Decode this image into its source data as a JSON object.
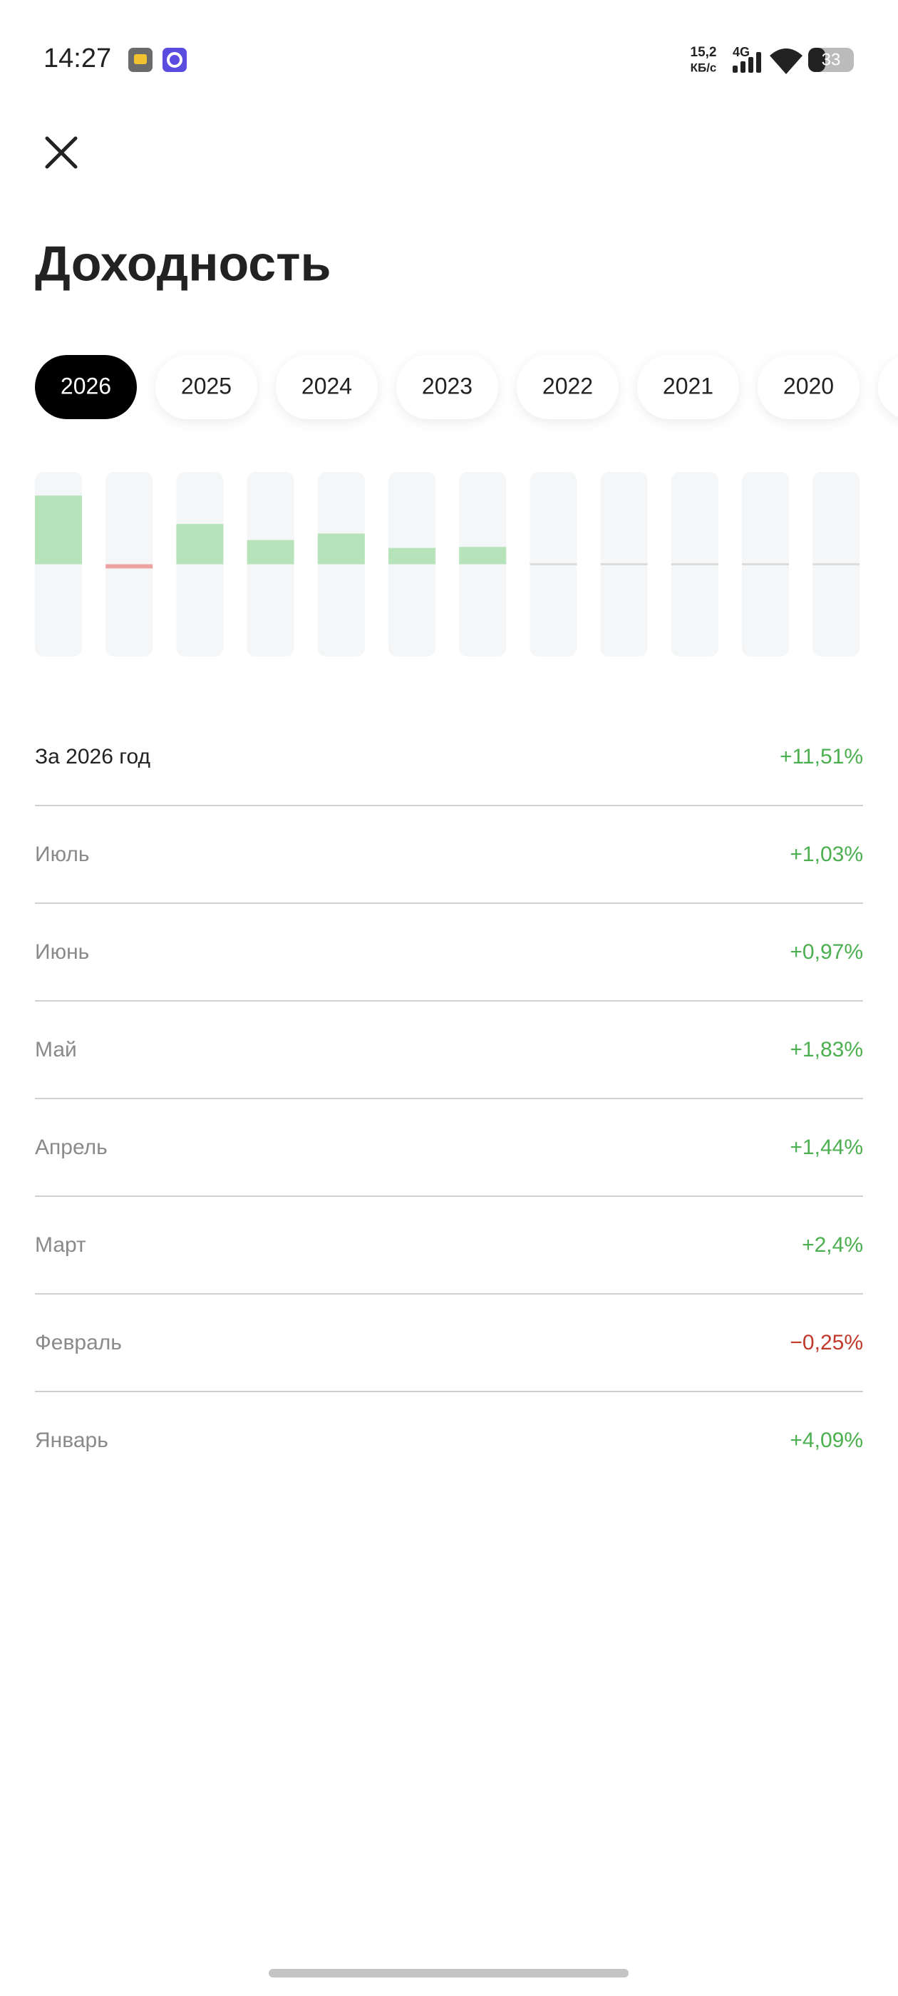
{
  "status_bar": {
    "time": "14:27",
    "speed": "15,2",
    "speed_unit": "КБ/с",
    "network": "4G",
    "battery": "33"
  },
  "header": {
    "title": "Доходность"
  },
  "tabs": {
    "items": [
      "2026",
      "2025",
      "2024",
      "2023",
      "2022",
      "2021",
      "2020"
    ],
    "selected": 0
  },
  "chart_data": {
    "type": "bar",
    "categories": [
      "Январь",
      "Февраль",
      "Март",
      "Апрель",
      "Май",
      "Июнь",
      "Июль",
      null,
      null,
      null,
      null,
      null
    ],
    "values": [
      4.09,
      -0.25,
      2.4,
      1.44,
      1.83,
      0.97,
      1.03,
      null,
      null,
      null,
      null,
      null
    ],
    "value_labels": [
      "+4,09%",
      "−0,25%",
      "+2,4%",
      "+1,44%",
      "+1,83%",
      "+0,97%",
      "+1,03%",
      null,
      null,
      null,
      null,
      null
    ],
    "ylim": [
      -5.5,
      5.5
    ],
    "positive_color": "#b6e3b9",
    "negative_color": "#eea3a3"
  },
  "summary": {
    "label": "За 2026 год",
    "value": "+11,51%"
  }
}
